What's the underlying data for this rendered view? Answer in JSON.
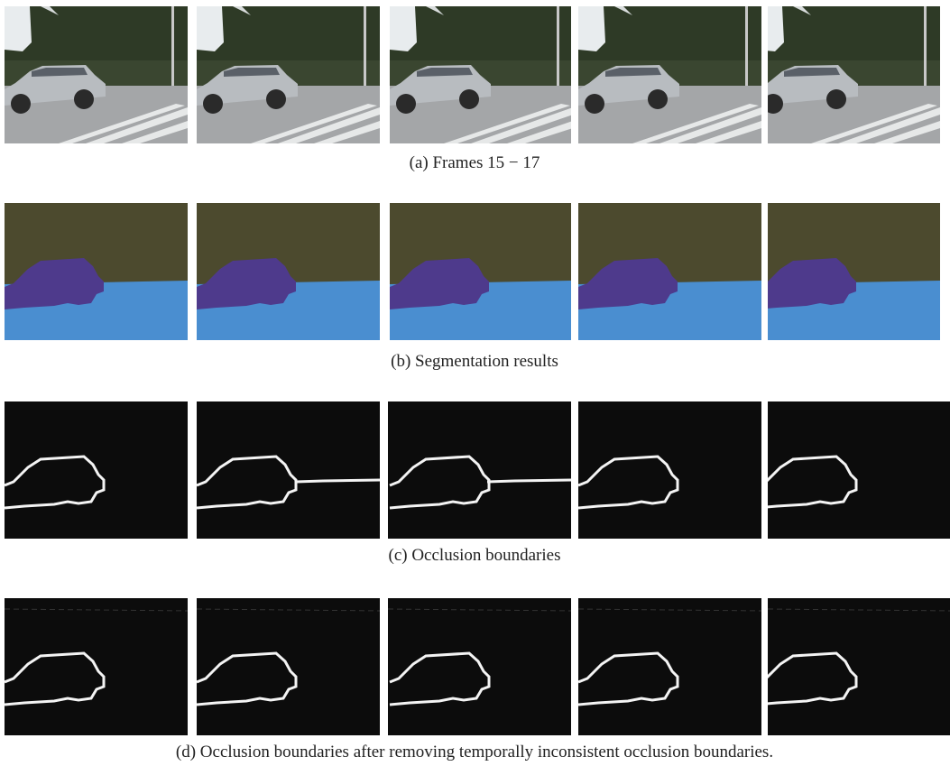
{
  "figure": {
    "captions": [
      "(a) Frames 15 − 17",
      "(b) Segmentation results",
      "(c) Occlusion boundaries",
      "(d) Occlusion boundaries after removing temporally inconsistent occlusion boundaries."
    ]
  }
}
